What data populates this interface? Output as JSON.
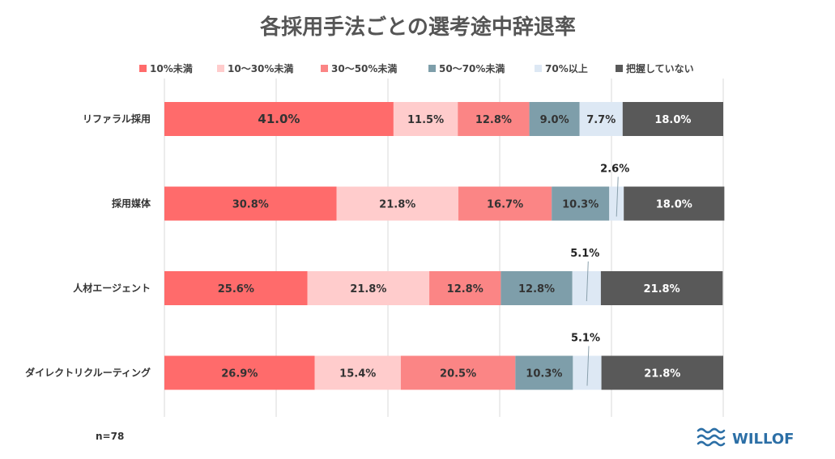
{
  "chart_data": {
    "type": "bar",
    "orientation": "horizontal",
    "stacked": true,
    "title": "各採用手法ごとの選考途中辞退率",
    "categories": [
      "リファラル採用",
      "採用媒体",
      "人材エージェント",
      "ダイレクトリクルーティング"
    ],
    "series": [
      {
        "name": "10%未満",
        "color": "#ff6b6b",
        "values": [
          41.0,
          30.8,
          25.6,
          26.9
        ],
        "labels": [
          "41.0%",
          "30.8%",
          "25.6%",
          "26.9%"
        ]
      },
      {
        "name": "10～30%未満",
        "color": "#ffcccc",
        "values": [
          11.5,
          21.8,
          21.8,
          15.4
        ],
        "labels": [
          "11.5%",
          "21.8%",
          "21.8%",
          "15.4%"
        ]
      },
      {
        "name": "30～50%未満",
        "color": "#fb8585",
        "values": [
          12.8,
          16.7,
          12.8,
          20.5
        ],
        "labels": [
          "12.8%",
          "16.7%",
          "12.8%",
          "20.5%"
        ]
      },
      {
        "name": "50～70%未満",
        "color": "#7e9eaa",
        "values": [
          9.0,
          10.3,
          12.8,
          10.3
        ],
        "labels": [
          "9.0%",
          "10.3%",
          "12.8%",
          "10.3%"
        ]
      },
      {
        "name": "70%以上",
        "color": "#dde8f4",
        "values": [
          7.7,
          2.6,
          5.1,
          5.1
        ],
        "labels": [
          "7.7%",
          "2.6%",
          "5.1%",
          "5.1%"
        ]
      },
      {
        "name": "把握していない",
        "color": "#595959",
        "values": [
          18.0,
          18.0,
          21.8,
          21.8
        ],
        "labels": [
          "18.0%",
          "18.0%",
          "21.8%",
          "21.8%"
        ]
      }
    ],
    "xlim": [
      0,
      100
    ],
    "grid": true,
    "legend_position": "top"
  },
  "footnote": "n=78",
  "brand": {
    "name": "WILLOF",
    "icon": "wave-logo-icon",
    "color": "#2c6fa6"
  }
}
